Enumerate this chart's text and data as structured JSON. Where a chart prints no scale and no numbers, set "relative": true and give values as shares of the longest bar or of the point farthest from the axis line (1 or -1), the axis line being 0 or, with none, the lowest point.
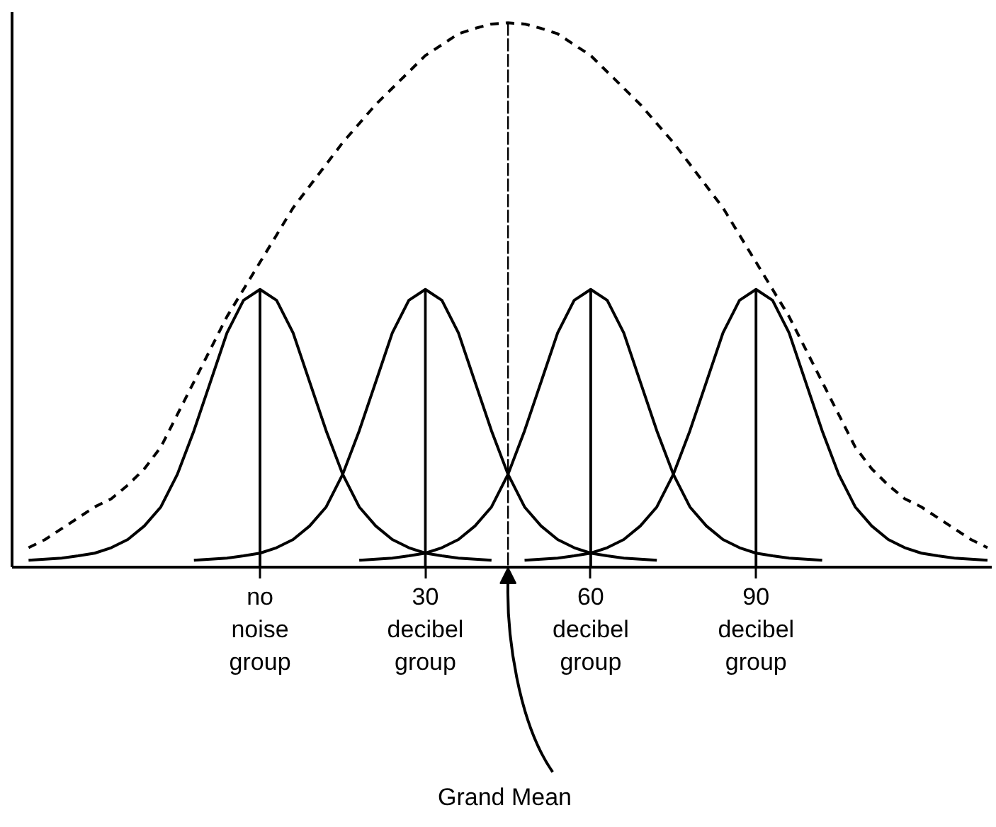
{
  "chart_data": {
    "type": "line",
    "relative": true,
    "categories": [
      null,
      null,
      null,
      null,
      null,
      null,
      null,
      null,
      null,
      null,
      null,
      null,
      null,
      null,
      null,
      "no noise group",
      null,
      null,
      null,
      null,
      null,
      null,
      null,
      null,
      null,
      "30 decibel group",
      null,
      null,
      null,
      null,
      null,
      null,
      null,
      null,
      null,
      "60 decibel group",
      null,
      null,
      null,
      null,
      null,
      null,
      null,
      null,
      null,
      "90 decibel group",
      null,
      null,
      null,
      null,
      null,
      null,
      null,
      null,
      null,
      null,
      null,
      null,
      null,
      null
    ],
    "annotations": [
      "Grand Mean"
    ],
    "series": [
      {
        "color": "#000000",
        "line_style": "dashed",
        "values": [
          null,
          0.035,
          0.05,
          0.07,
          0.09,
          0.11,
          0.125,
          0.15,
          0.18,
          0.22,
          0.28,
          0.34,
          0.4,
          0.46,
          0.51,
          0.56,
          0.61,
          0.66,
          0.7,
          0.74,
          0.78,
          0.815,
          0.85,
          0.88,
          0.91,
          0.94,
          0.96,
          0.98,
          0.99,
          0.998,
          1,
          0.998,
          0.99,
          0.98,
          0.96,
          0.94,
          0.91,
          0.88,
          0.85,
          0.815,
          0.78,
          0.74,
          0.7,
          0.66,
          0.61,
          0.56,
          0.51,
          0.46,
          0.4,
          0.34,
          0.28,
          0.22,
          0.18,
          0.15,
          0.125,
          0.11,
          0.09,
          0.07,
          0.05,
          0.035
        ]
      },
      {
        "color": "#000000",
        "line_style": "solid",
        "values": [
          null,
          0.012,
          0.014,
          0.016,
          0.02,
          0.025,
          0.035,
          0.05,
          0.075,
          0.11,
          0.17,
          0.25,
          0.34,
          0.43,
          0.49,
          0.51,
          0.49,
          0.43,
          0.34,
          0.25,
          0.17,
          0.11,
          0.075,
          0.05,
          0.035,
          0.025,
          0.02,
          0.016,
          0.014,
          0.012,
          null,
          null,
          null,
          null,
          null,
          null,
          null,
          null,
          null,
          null,
          null,
          null,
          null,
          null,
          null,
          null,
          null,
          null,
          null,
          null,
          null,
          null,
          null,
          null,
          null,
          null,
          null,
          null,
          null,
          null
        ]
      },
      {
        "color": "#000000",
        "line_style": "solid",
        "values": [
          null,
          null,
          null,
          null,
          null,
          null,
          null,
          null,
          null,
          null,
          null,
          0.012,
          0.014,
          0.016,
          0.02,
          0.025,
          0.035,
          0.05,
          0.075,
          0.11,
          0.17,
          0.25,
          0.34,
          0.43,
          0.49,
          0.51,
          0.49,
          0.43,
          0.34,
          0.25,
          0.17,
          0.11,
          0.075,
          0.05,
          0.035,
          0.025,
          0.02,
          0.016,
          0.014,
          0.012,
          null,
          null,
          null,
          null,
          null,
          null,
          null,
          null,
          null,
          null,
          null,
          null,
          null,
          null,
          null,
          null,
          null,
          null,
          null,
          null
        ]
      },
      {
        "color": "#000000",
        "line_style": "solid",
        "values": [
          null,
          null,
          null,
          null,
          null,
          null,
          null,
          null,
          null,
          null,
          null,
          null,
          null,
          null,
          null,
          null,
          null,
          null,
          null,
          null,
          null,
          0.012,
          0.014,
          0.016,
          0.02,
          0.025,
          0.035,
          0.05,
          0.075,
          0.11,
          0.17,
          0.25,
          0.34,
          0.43,
          0.49,
          0.51,
          0.49,
          0.43,
          0.34,
          0.25,
          0.17,
          0.11,
          0.075,
          0.05,
          0.035,
          0.025,
          0.02,
          0.016,
          0.014,
          0.012,
          null,
          null,
          null,
          null,
          null,
          null,
          null,
          null,
          null,
          null
        ]
      },
      {
        "color": "#000000",
        "line_style": "solid",
        "values": [
          null,
          null,
          null,
          null,
          null,
          null,
          null,
          null,
          null,
          null,
          null,
          null,
          null,
          null,
          null,
          null,
          null,
          null,
          null,
          null,
          null,
          null,
          null,
          null,
          null,
          null,
          null,
          null,
          null,
          null,
          null,
          0.012,
          0.014,
          0.016,
          0.02,
          0.025,
          0.035,
          0.05,
          0.075,
          0.11,
          0.17,
          0.25,
          0.34,
          0.43,
          0.49,
          0.51,
          0.49,
          0.43,
          0.34,
          0.25,
          0.17,
          0.11,
          0.075,
          0.05,
          0.035,
          0.025,
          0.02,
          0.016,
          0.014,
          0.012
        ]
      },
      {
        "type": "bar",
        "color": "#000000",
        "line_style": "solid",
        "values": [
          null,
          null,
          null,
          null,
          null,
          null,
          null,
          null,
          null,
          null,
          null,
          null,
          null,
          null,
          null,
          0.51,
          null,
          null,
          null,
          null,
          null,
          null,
          null,
          null,
          null,
          0.51,
          null,
          null,
          null,
          null,
          null,
          null,
          null,
          null,
          null,
          0.51,
          null,
          null,
          null,
          null,
          null,
          null,
          null,
          null,
          null,
          0.51,
          null,
          null,
          null,
          null,
          null,
          null,
          null,
          null,
          null,
          null,
          null,
          null,
          null,
          null
        ]
      },
      {
        "type": "bar",
        "color": "#000000",
        "line_style": "dashed",
        "values": [
          null,
          null,
          null,
          null,
          null,
          null,
          null,
          null,
          null,
          null,
          null,
          null,
          null,
          null,
          null,
          null,
          null,
          null,
          null,
          null,
          null,
          null,
          null,
          null,
          null,
          null,
          null,
          null,
          null,
          null,
          1,
          null,
          null,
          null,
          null,
          null,
          null,
          null,
          null,
          null,
          null,
          null,
          null,
          null,
          null,
          null,
          null,
          null,
          null,
          null,
          null,
          null,
          null,
          null,
          null,
          null,
          null,
          null,
          null,
          null
        ]
      }
    ]
  }
}
